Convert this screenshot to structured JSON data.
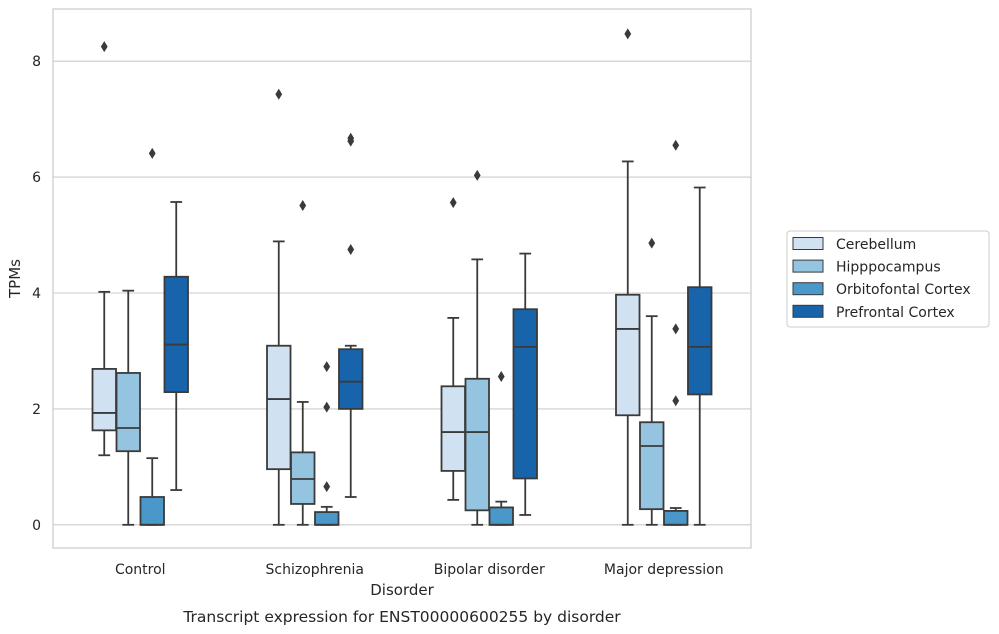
{
  "chart_data": {
    "type": "box",
    "title": "Transcript expression for ENST00000600255 by disorder",
    "xlabel": "Disorder",
    "ylabel": "TPMs",
    "ylim": [
      -0.4,
      8.9
    ],
    "yticks": [
      0,
      2,
      4,
      6,
      8
    ],
    "grid": "horizontal",
    "legend_position": "outside-right",
    "categories": [
      "Control",
      "Schizophrenia",
      "Bipolar disorder",
      "Major depression"
    ],
    "series": [
      {
        "name": "Cerebellum",
        "color": "#d0e1f2",
        "boxes": [
          {
            "whisker_low": 1.2,
            "q1": 1.63,
            "median": 1.93,
            "q3": 2.69,
            "whisker_high": 4.02,
            "outliers": [
              8.25
            ]
          },
          {
            "whisker_low": 0.0,
            "q1": 0.96,
            "median": 2.17,
            "q3": 3.09,
            "whisker_high": 4.89,
            "outliers": [
              7.43
            ]
          },
          {
            "whisker_low": 0.43,
            "q1": 0.93,
            "median": 1.6,
            "q3": 2.39,
            "whisker_high": 3.57,
            "outliers": [
              5.56
            ]
          },
          {
            "whisker_low": 0.0,
            "q1": 1.89,
            "median": 3.38,
            "q3": 3.97,
            "whisker_high": 6.27,
            "outliers": [
              8.47
            ]
          }
        ]
      },
      {
        "name": "Hipppocampus",
        "color": "#94c4df",
        "boxes": [
          {
            "whisker_low": 0.0,
            "q1": 1.27,
            "median": 1.67,
            "q3": 2.62,
            "whisker_high": 4.04,
            "outliers": []
          },
          {
            "whisker_low": 0.0,
            "q1": 0.36,
            "median": 0.79,
            "q3": 1.25,
            "whisker_high": 2.12,
            "outliers": [
              5.51
            ]
          },
          {
            "whisker_low": 0.0,
            "q1": 0.25,
            "median": 1.6,
            "q3": 2.52,
            "whisker_high": 4.58,
            "outliers": [
              6.03
            ]
          },
          {
            "whisker_low": 0.0,
            "q1": 0.27,
            "median": 1.36,
            "q3": 1.77,
            "whisker_high": 3.6,
            "outliers": [
              4.86
            ]
          }
        ]
      },
      {
        "name": "Orbitofontal Cortex",
        "color": "#4a98c9",
        "boxes": [
          {
            "whisker_low": 0.0,
            "q1": 0.0,
            "median": 0.0,
            "q3": 0.48,
            "whisker_high": 1.15,
            "outliers": [
              6.41
            ]
          },
          {
            "whisker_low": 0.0,
            "q1": 0.0,
            "median": 0.0,
            "q3": 0.22,
            "whisker_high": 0.31,
            "outliers": [
              0.66,
              2.03,
              2.73
            ]
          },
          {
            "whisker_low": 0.0,
            "q1": 0.0,
            "median": 0.0,
            "q3": 0.3,
            "whisker_high": 0.4,
            "outliers": [
              2.56
            ]
          },
          {
            "whisker_low": 0.0,
            "q1": 0.0,
            "median": 0.0,
            "q3": 0.24,
            "whisker_high": 0.29,
            "outliers": [
              2.14,
              3.38,
              6.55
            ]
          }
        ]
      },
      {
        "name": "Prefrontal Cortex",
        "color": "#1764ab",
        "boxes": [
          {
            "whisker_low": 0.6,
            "q1": 2.29,
            "median": 3.11,
            "q3": 4.28,
            "whisker_high": 5.57,
            "outliers": []
          },
          {
            "whisker_low": 0.48,
            "q1": 2.0,
            "median": 2.47,
            "q3": 3.03,
            "whisker_high": 3.09,
            "outliers": [
              4.75,
              6.62,
              6.67
            ]
          },
          {
            "whisker_low": 0.17,
            "q1": 0.8,
            "median": 3.07,
            "q3": 3.72,
            "whisker_high": 4.68,
            "outliers": []
          },
          {
            "whisker_low": 0.0,
            "q1": 2.25,
            "median": 3.07,
            "q3": 4.1,
            "whisker_high": 5.82,
            "outliers": []
          }
        ]
      }
    ]
  }
}
